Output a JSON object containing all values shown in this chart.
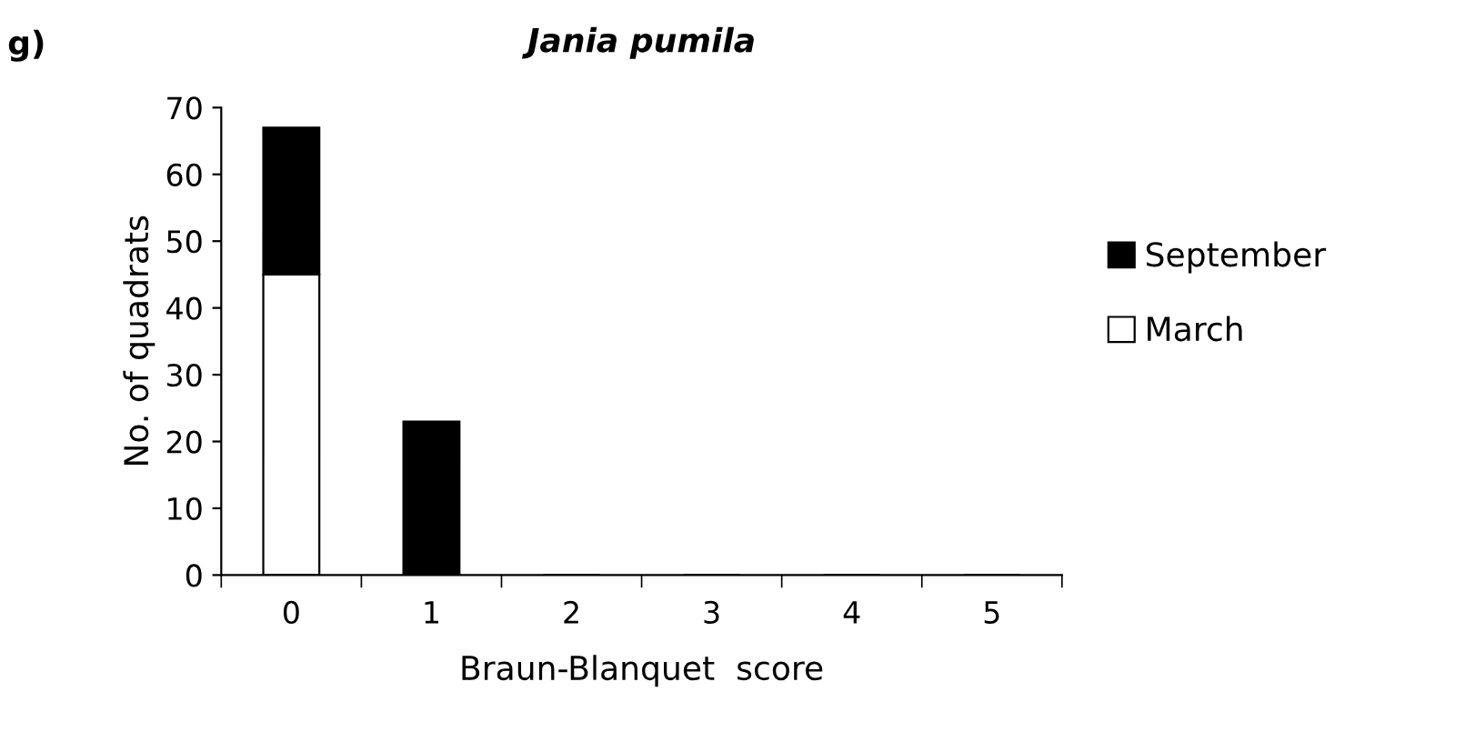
{
  "chart_data": {
    "type": "bar",
    "title": "Jania pumila",
    "xlabel": "Braun-Blanquet  score",
    "ylabel": "No. of quadrats",
    "annotations": [
      "g)"
    ],
    "categories": [
      "0",
      "1",
      "2",
      "3",
      "4",
      "5"
    ],
    "stacked": true,
    "series": [
      {
        "name": "March",
        "color": "#ffffff",
        "values": [
          45,
          0,
          0,
          0,
          0,
          0
        ]
      },
      {
        "name": "September",
        "color": "#000000",
        "values": [
          22,
          23,
          0,
          0,
          0,
          0
        ]
      }
    ],
    "ylim": [
      0,
      70
    ],
    "yticks": [
      0,
      10,
      20,
      30,
      40,
      50,
      60,
      70
    ],
    "grid": false,
    "legend": "right"
  }
}
